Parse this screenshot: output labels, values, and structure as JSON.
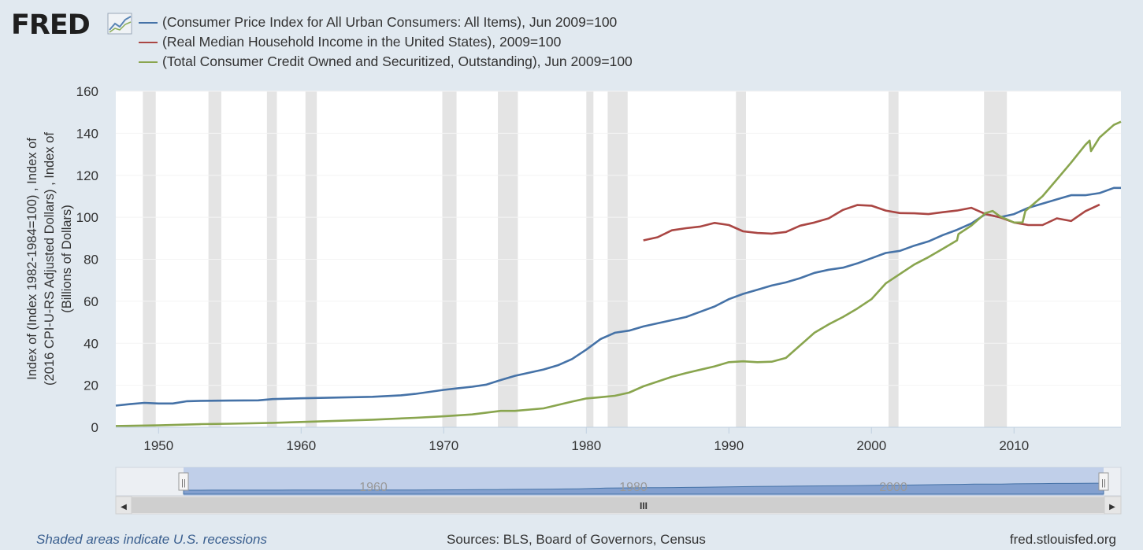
{
  "logo": {
    "text": "FRED"
  },
  "chart_data": {
    "type": "line",
    "title": "",
    "ylabel": "Index of (Index 1982-1984=100) , Index of (2016 CPI-U-RS Adjusted Dollars) , Index of (Billions of Dollars)",
    "xlabel": "",
    "xlim": [
      1947,
      2017.5
    ],
    "ylim": [
      0,
      160
    ],
    "yticks": [
      0,
      20,
      40,
      60,
      80,
      100,
      120,
      140,
      160
    ],
    "xticks": [
      1950,
      1960,
      1970,
      1980,
      1990,
      2000,
      2010
    ],
    "grid": "horizontal",
    "legend_position": "top",
    "recessions": [
      [
        1948.9,
        1949.8
      ],
      [
        1953.5,
        1954.4
      ],
      [
        1957.6,
        1958.3
      ],
      [
        1960.3,
        1961.1
      ],
      [
        1969.9,
        1970.9
      ],
      [
        1973.8,
        1975.2
      ],
      [
        1980.0,
        1980.5
      ],
      [
        1981.5,
        1982.9
      ],
      [
        1990.5,
        1991.2
      ],
      [
        2001.2,
        2001.9
      ],
      [
        2007.9,
        2009.5
      ]
    ],
    "series": [
      {
        "name": "(Consumer Price Index for All Urban Consumers: All Items), Jun 2009=100",
        "color": "#4572a7",
        "points": [
          [
            1947,
            10.3
          ],
          [
            1948,
            11.0
          ],
          [
            1949,
            11.6
          ],
          [
            1950,
            11.3
          ],
          [
            1951,
            11.3
          ],
          [
            1952,
            12.4
          ],
          [
            1953,
            12.6
          ],
          [
            1955,
            12.7
          ],
          [
            1957,
            12.8
          ],
          [
            1958,
            13.4
          ],
          [
            1960,
            13.8
          ],
          [
            1962,
            14.1
          ],
          [
            1965,
            14.5
          ],
          [
            1967,
            15.2
          ],
          [
            1968,
            15.9
          ],
          [
            1970,
            17.8
          ],
          [
            1971,
            18.6
          ],
          [
            1972,
            19.3
          ],
          [
            1973,
            20.3
          ],
          [
            1974,
            22.5
          ],
          [
            1975,
            24.5
          ],
          [
            1976,
            26.0
          ],
          [
            1977,
            27.5
          ],
          [
            1978,
            29.5
          ],
          [
            1979,
            32.5
          ],
          [
            1980,
            37.0
          ],
          [
            1981,
            42.0
          ],
          [
            1982,
            45.0
          ],
          [
            1983,
            46.0
          ],
          [
            1984,
            48.0
          ],
          [
            1985,
            49.5
          ],
          [
            1986,
            51.0
          ],
          [
            1987,
            52.5
          ],
          [
            1988,
            55.0
          ],
          [
            1989,
            57.5
          ],
          [
            1990,
            61.0
          ],
          [
            1991,
            63.5
          ],
          [
            1992,
            65.5
          ],
          [
            1993,
            67.5
          ],
          [
            1994,
            69.0
          ],
          [
            1995,
            71.0
          ],
          [
            1996,
            73.5
          ],
          [
            1997,
            75.0
          ],
          [
            1998,
            76.0
          ],
          [
            1999,
            78.0
          ],
          [
            2000,
            80.5
          ],
          [
            2001,
            83.0
          ],
          [
            2002,
            84.0
          ],
          [
            2003,
            86.5
          ],
          [
            2004,
            88.5
          ],
          [
            2005,
            91.5
          ],
          [
            2006,
            94.0
          ],
          [
            2007,
            97.0
          ],
          [
            2008,
            101.5
          ],
          [
            2009,
            100.0
          ],
          [
            2010,
            101.5
          ],
          [
            2011,
            104.5
          ],
          [
            2012,
            106.5
          ],
          [
            2013,
            108.5
          ],
          [
            2014,
            110.5
          ],
          [
            2015,
            110.5
          ],
          [
            2016,
            111.5
          ],
          [
            2017,
            114.0
          ],
          [
            2017.5,
            114.0
          ]
        ]
      },
      {
        "name": "(Real Median Household Income in the United States), 2009=100",
        "color": "#aa4643",
        "points": [
          [
            1984,
            89.0
          ],
          [
            1985,
            90.5
          ],
          [
            1986,
            93.8
          ],
          [
            1987,
            94.8
          ],
          [
            1988,
            95.6
          ],
          [
            1989,
            97.3
          ],
          [
            1990,
            96.3
          ],
          [
            1991,
            93.3
          ],
          [
            1992,
            92.5
          ],
          [
            1993,
            92.2
          ],
          [
            1994,
            93.0
          ],
          [
            1995,
            96.0
          ],
          [
            1996,
            97.5
          ],
          [
            1997,
            99.5
          ],
          [
            1998,
            103.5
          ],
          [
            1999,
            105.8
          ],
          [
            2000,
            105.5
          ],
          [
            2001,
            103.2
          ],
          [
            2002,
            102.0
          ],
          [
            2003,
            101.9
          ],
          [
            2004,
            101.5
          ],
          [
            2005,
            102.4
          ],
          [
            2006,
            103.2
          ],
          [
            2007,
            104.5
          ],
          [
            2008,
            101.5
          ],
          [
            2009,
            100.0
          ],
          [
            2010,
            97.5
          ],
          [
            2011,
            96.3
          ],
          [
            2012,
            96.3
          ],
          [
            2013,
            99.5
          ],
          [
            2014,
            98.2
          ],
          [
            2015,
            102.9
          ],
          [
            2016,
            106.0
          ]
        ]
      },
      {
        "name": "(Total Consumer Credit Owned and Securitized, Outstanding), Jun 2009=100",
        "color": "#89a54e",
        "points": [
          [
            1947,
            0.6
          ],
          [
            1950,
            0.9
          ],
          [
            1953,
            1.5
          ],
          [
            1955,
            1.7
          ],
          [
            1958,
            2.1
          ],
          [
            1960,
            2.5
          ],
          [
            1965,
            3.6
          ],
          [
            1968,
            4.5
          ],
          [
            1970,
            5.2
          ],
          [
            1972,
            6.1
          ],
          [
            1974,
            7.8
          ],
          [
            1975,
            7.8
          ],
          [
            1977,
            9.0
          ],
          [
            1979,
            12.2
          ],
          [
            1980,
            13.7
          ],
          [
            1981,
            14.3
          ],
          [
            1982,
            15.0
          ],
          [
            1983,
            16.5
          ],
          [
            1984,
            19.5
          ],
          [
            1986,
            24.0
          ],
          [
            1987,
            25.8
          ],
          [
            1989,
            29.0
          ],
          [
            1990,
            31.0
          ],
          [
            1991,
            31.4
          ],
          [
            1992,
            31.0
          ],
          [
            1993,
            31.2
          ],
          [
            1994,
            33.0
          ],
          [
            1995,
            39.0
          ],
          [
            1996,
            45.0
          ],
          [
            1997,
            49.0
          ],
          [
            1998,
            52.5
          ],
          [
            1999,
            56.5
          ],
          [
            2000,
            61.0
          ],
          [
            2001,
            68.5
          ],
          [
            2002,
            73.0
          ],
          [
            2003,
            77.5
          ],
          [
            2004,
            81.0
          ],
          [
            2005,
            85.0
          ],
          [
            2006,
            89.0
          ],
          [
            2006.1,
            92.0
          ],
          [
            2007,
            96.0
          ],
          [
            2008,
            102.0
          ],
          [
            2008.5,
            103.0
          ],
          [
            2009,
            100.5
          ],
          [
            2010,
            97.5
          ],
          [
            2010.6,
            97.5
          ],
          [
            2010.8,
            103.0
          ],
          [
            2012,
            110.0
          ],
          [
            2013,
            118.0
          ],
          [
            2014,
            126.0
          ],
          [
            2015,
            134.5
          ],
          [
            2015.3,
            136.5
          ],
          [
            2015.4,
            131.5
          ],
          [
            2016,
            138.0
          ],
          [
            2017,
            144.0
          ],
          [
            2017.5,
            145.5
          ]
        ]
      }
    ]
  },
  "navigator": {
    "labels": [
      "1960",
      "1980",
      "2000"
    ],
    "thumb_glyph": "III",
    "left_arrow": "◀",
    "right_arrow": "▶",
    "handle_glyph": "||"
  },
  "footer": {
    "note": "Shaded areas indicate U.S. recessions",
    "sources": "Sources: BLS, Board of Governors, Census",
    "site": "fred.stlouisfed.org"
  }
}
